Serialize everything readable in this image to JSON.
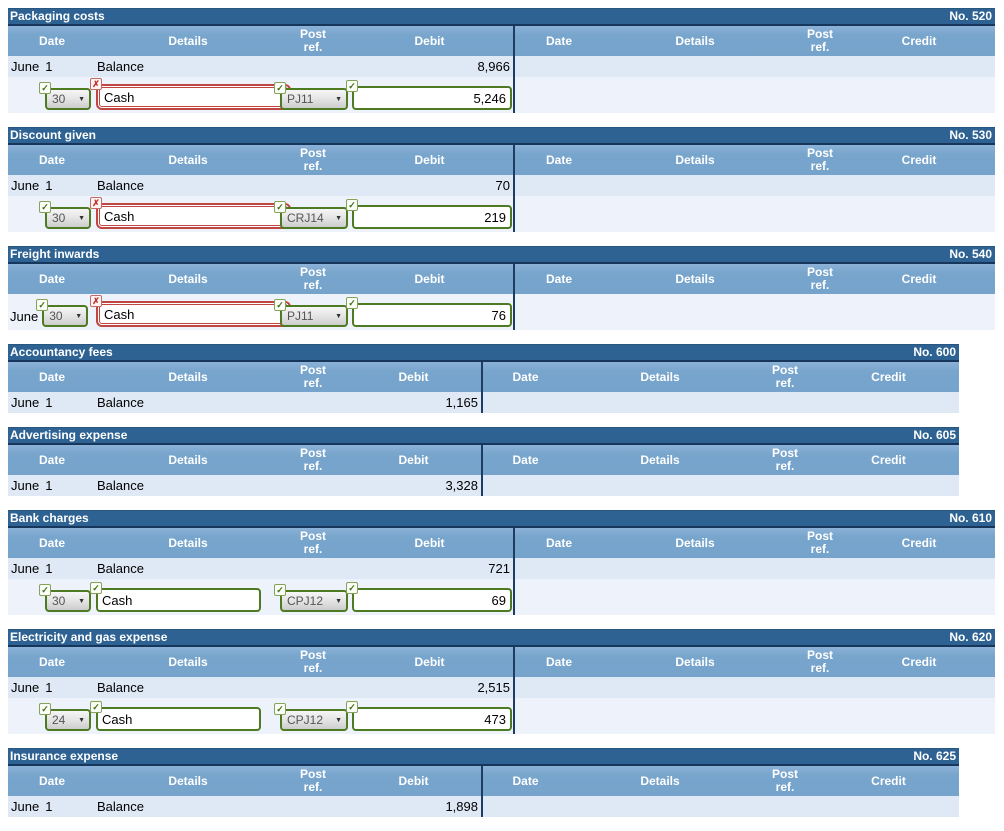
{
  "columns": {
    "date": "Date",
    "details": "Details",
    "post_line1": "Post",
    "post_line2": "ref.",
    "debit": "Debit",
    "credit": "Credit"
  },
  "icons": {
    "check": "✓",
    "cross": "✗",
    "arrow": "▼"
  },
  "colors": {
    "title_bar": "#2d6292",
    "title_border": "#16365c",
    "header_bg": "#77a4cb",
    "row_dark": "#dfe9f5",
    "row_light": "#eef3fb",
    "valid_green": "#4e7a22",
    "invalid_red": "#c14541",
    "divider": "#1d3d63"
  },
  "accounts": [
    {
      "title": "Packaging costs",
      "number": "No. 520",
      "balance": {
        "month": "June",
        "day": "1",
        "details": "Balance",
        "debit": "8,966"
      },
      "entry": {
        "day": "30",
        "details": "Cash",
        "post_ref": "PJ11",
        "debit": "5,246"
      }
    },
    {
      "title": "Discount given",
      "number": "No. 530",
      "balance": {
        "month": "June",
        "day": "1",
        "details": "Balance",
        "debit": "70"
      },
      "entry": {
        "day": "30",
        "details": "Cash",
        "post_ref": "CRJ14",
        "debit": "219"
      }
    },
    {
      "title": "Freight inwards",
      "number": "No. 540",
      "entry": {
        "month": "June",
        "day": "30",
        "details": "Cash",
        "post_ref": "PJ11",
        "debit": "76"
      }
    },
    {
      "title": "Accountancy fees",
      "number": "No. 600",
      "balance": {
        "month": "June",
        "day": "1",
        "details": "Balance",
        "debit": "1,165"
      }
    },
    {
      "title": "Advertising expense",
      "number": "No. 605",
      "balance": {
        "month": "June",
        "day": "1",
        "details": "Balance",
        "debit": "3,328"
      }
    },
    {
      "title": "Bank charges",
      "number": "No. 610",
      "balance": {
        "month": "June",
        "day": "1",
        "details": "Balance",
        "debit": "721"
      },
      "entry": {
        "day": "30",
        "details": "Cash",
        "post_ref": "CPJ12",
        "debit": "69"
      }
    },
    {
      "title": "Electricity and gas expense",
      "number": "No. 620",
      "balance": {
        "month": "June",
        "day": "1",
        "details": "Balance",
        "debit": "2,515"
      },
      "entry": {
        "day": "24",
        "details": "Cash",
        "post_ref": "CPJ12",
        "debit": "473"
      }
    },
    {
      "title": "Insurance expense",
      "number": "No. 625",
      "balance": {
        "month": "June",
        "day": "1",
        "details": "Balance",
        "debit": "1,898"
      }
    }
  ]
}
